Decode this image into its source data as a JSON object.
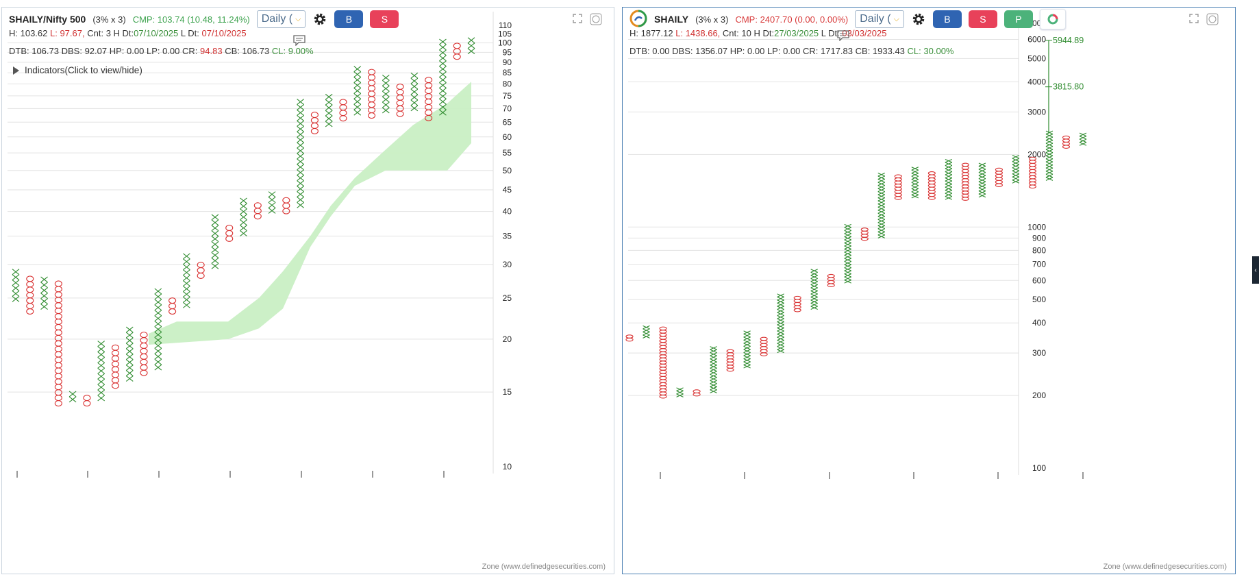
{
  "left": {
    "symbol": "SHAILY/Nifty 500",
    "box": "(3% x 3)",
    "cmp": "CMP: 103.74 (10.48, 11.24%)",
    "timeframe": "Daily (",
    "buttons": {
      "buy": "B",
      "sell": "S"
    },
    "row1": {
      "h": "H: 103.62",
      "l": "L: 97.67,",
      "cnt": "Cnt: 3 H",
      "hdt_label": "Dt:",
      "hdt": "07/10/2025",
      "ldt_label": "L Dt:",
      "ldt": "07/10/2025"
    },
    "row2": {
      "dtb": "DTB: 106.73",
      "dbs": "DBS: 92.07",
      "hp": "HP: 0.00",
      "lp": "LP: 0.00",
      "cr_label": "CR:",
      "cr": "94.83",
      "cb": "CB: 106.73",
      "cl": "CL: 9.00%"
    },
    "indicators": "Indicators(Click to view/hide)",
    "footer": "Zone (www.definedgesecurities.com)",
    "y_ticks": [
      "110",
      "105",
      "100",
      "95",
      "90",
      "85",
      "80",
      "75",
      "70",
      "65",
      "60",
      "55",
      "50",
      "45",
      "40",
      "35",
      "30",
      "25",
      "20",
      "15",
      "10"
    ]
  },
  "right": {
    "symbol": "SHAILY",
    "box": "(3% x 3)",
    "cmp": "CMP: 2407.70 (0.00, 0.00%)",
    "timeframe": "Daily (",
    "buttons": {
      "buy": "B",
      "sell": "S",
      "p": "P"
    },
    "row1": {
      "h": "H: 1877.12",
      "l": "L: 1438.66,",
      "cnt": "Cnt: 10 H",
      "hdt_label": "Dt:",
      "hdt": "27/03/2025",
      "ldt_label": "L Dt:",
      "ldt": "03/03/2025"
    },
    "row2": {
      "dtb": "DTB: 0.00",
      "dbs": "DBS: 1356.07",
      "hp": "HP: 0.00",
      "lp": "LP: 0.00",
      "cr": "CR: 1717.83",
      "cb": "CB: 1933.43",
      "cl": "CL: 30.00%"
    },
    "target_high": "5944.89",
    "target_mid": "3815.80",
    "footer": "Zone (www.definedgesecurities.com)",
    "y_ticks": [
      "7000",
      "6000",
      "5000",
      "4000",
      "3000",
      "2000",
      "1000",
      "900",
      "800",
      "700",
      "600",
      "500",
      "400",
      "300",
      "200",
      "100"
    ]
  },
  "colors": {
    "x": "#2e8b2e",
    "o": "#d93030",
    "cloud": "#c9efc4"
  },
  "chart_data": [
    {
      "type": "point-and-figure",
      "title": "SHAILY/Nifty 500",
      "scale": "log",
      "ylim": [
        10,
        110
      ],
      "columns": [
        {
          "kind": "X",
          "low": 24.5,
          "high": 28.4
        },
        {
          "kind": "O",
          "low": 22.9,
          "high": 27.8
        },
        {
          "kind": "X",
          "low": 23.5,
          "high": 27.8
        },
        {
          "kind": "O",
          "low": 13.9,
          "high": 27.0
        },
        {
          "kind": "X",
          "low": 14.2,
          "high": 15.0
        },
        {
          "kind": "O",
          "low": 13.9,
          "high": 14.7
        },
        {
          "kind": "X",
          "low": 14.3,
          "high": 19.6
        },
        {
          "kind": "O",
          "low": 15.3,
          "high": 19.1
        },
        {
          "kind": "X",
          "low": 15.9,
          "high": 21.1
        },
        {
          "kind": "O",
          "low": 16.4,
          "high": 20.3
        },
        {
          "kind": "X",
          "low": 16.9,
          "high": 25.7
        },
        {
          "kind": "O",
          "low": 22.9,
          "high": 25.0
        },
        {
          "kind": "X",
          "low": 23.7,
          "high": 31.8
        },
        {
          "kind": "O",
          "low": 27.8,
          "high": 30.0
        },
        {
          "kind": "X",
          "low": 29.3,
          "high": 38.9
        },
        {
          "kind": "O",
          "low": 34.0,
          "high": 36.3
        },
        {
          "kind": "X",
          "low": 35.0,
          "high": 42.4
        },
        {
          "kind": "O",
          "low": 38.4,
          "high": 40.9
        },
        {
          "kind": "X",
          "low": 39.6,
          "high": 43.5
        },
        {
          "kind": "O",
          "low": 39.5,
          "high": 42.1
        },
        {
          "kind": "X",
          "low": 40.8,
          "high": 72.6
        },
        {
          "kind": "O",
          "low": 61.0,
          "high": 68.5
        },
        {
          "kind": "X",
          "low": 63.4,
          "high": 75.6
        },
        {
          "kind": "O",
          "low": 65.4,
          "high": 73.4
        },
        {
          "kind": "X",
          "low": 67.5,
          "high": 87.1
        },
        {
          "kind": "O",
          "low": 66.4,
          "high": 84.5
        },
        {
          "kind": "X",
          "low": 68.3,
          "high": 82.6
        },
        {
          "kind": "O",
          "low": 67.0,
          "high": 79.9
        },
        {
          "kind": "X",
          "low": 69.1,
          "high": 84.6
        },
        {
          "kind": "O",
          "low": 65.5,
          "high": 81.6
        },
        {
          "kind": "X",
          "low": 67.5,
          "high": 100.8
        },
        {
          "kind": "O",
          "low": 91.4,
          "high": 97.8
        },
        {
          "kind": "X",
          "low": 94.2,
          "high": 100.8
        }
      ]
    },
    {
      "type": "point-and-figure",
      "title": "SHAILY",
      "scale": "log",
      "ylim": [
        100,
        7000
      ],
      "columns": [
        {
          "kind": "O",
          "low": 336,
          "high": 356
        },
        {
          "kind": "X",
          "low": 346,
          "high": 386
        },
        {
          "kind": "O",
          "low": 195,
          "high": 380
        },
        {
          "kind": "X",
          "low": 197,
          "high": 212
        },
        {
          "kind": "O",
          "low": 199,
          "high": 210
        },
        {
          "kind": "X",
          "low": 205,
          "high": 318
        },
        {
          "kind": "O",
          "low": 252,
          "high": 308
        },
        {
          "kind": "X",
          "low": 260,
          "high": 360
        },
        {
          "kind": "O",
          "low": 292,
          "high": 348
        },
        {
          "kind": "X",
          "low": 301,
          "high": 525
        },
        {
          "kind": "O",
          "low": 445,
          "high": 515
        },
        {
          "kind": "X",
          "low": 455,
          "high": 650
        },
        {
          "kind": "O",
          "low": 565,
          "high": 620
        },
        {
          "kind": "X",
          "low": 585,
          "high": 1010
        },
        {
          "kind": "O",
          "low": 880,
          "high": 990
        },
        {
          "kind": "X",
          "low": 900,
          "high": 1650
        },
        {
          "kind": "O",
          "low": 1300,
          "high": 1610
        },
        {
          "kind": "X",
          "low": 1320,
          "high": 1740
        },
        {
          "kind": "O",
          "low": 1300,
          "high": 1650
        },
        {
          "kind": "X",
          "low": 1300,
          "high": 1880
        },
        {
          "kind": "O",
          "low": 1290,
          "high": 1820
        },
        {
          "kind": "X",
          "low": 1330,
          "high": 1810
        },
        {
          "kind": "O",
          "low": 1470,
          "high": 1745
        },
        {
          "kind": "X",
          "low": 1520,
          "high": 1930
        },
        {
          "kind": "O",
          "low": 1450,
          "high": 1940
        },
        {
          "kind": "X",
          "low": 1560,
          "high": 2440
        },
        {
          "kind": "O",
          "low": 2120,
          "high": 2370
        },
        {
          "kind": "X",
          "low": 2180,
          "high": 2390
        }
      ]
    }
  ]
}
